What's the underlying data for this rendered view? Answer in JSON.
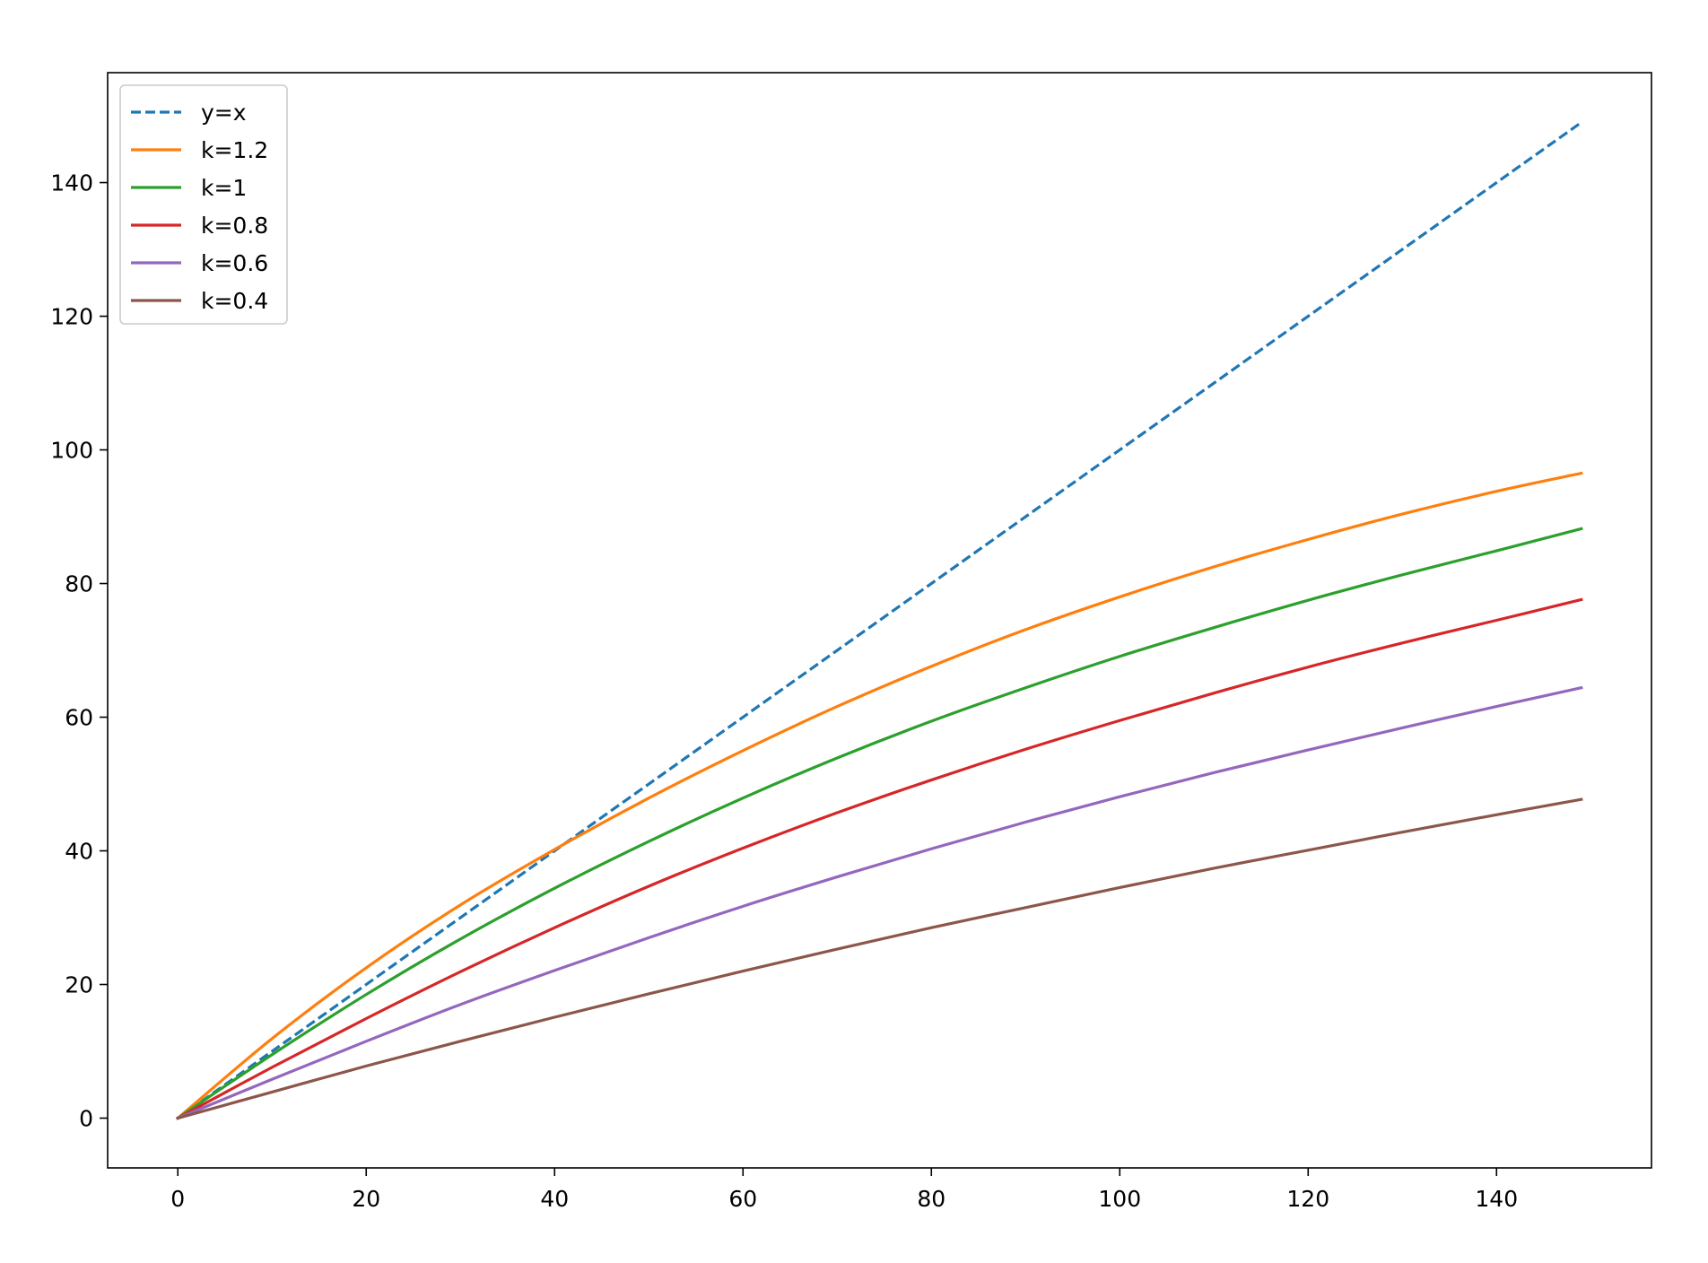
{
  "chart_data": {
    "type": "line",
    "title": "",
    "xlabel": "",
    "ylabel": "",
    "xlim": [
      -7.45,
      156.45
    ],
    "ylim": [
      -7.45,
      156.45
    ],
    "x_ticks": [
      0,
      20,
      40,
      60,
      80,
      100,
      120,
      140
    ],
    "y_ticks": [
      0,
      20,
      40,
      60,
      80,
      100,
      120,
      140
    ],
    "grid": false,
    "legend_position": "top-left",
    "x": [
      0,
      10,
      20,
      30,
      40,
      50,
      60,
      70,
      80,
      90,
      100,
      110,
      120,
      130,
      140,
      149
    ],
    "series": [
      {
        "name": "y=x",
        "color": "#1f77b4",
        "dash": "dashed",
        "values": [
          0,
          10,
          20,
          30,
          40,
          50,
          60,
          70,
          80,
          90,
          100,
          110,
          120,
          130,
          140,
          149
        ]
      },
      {
        "name": "k=1.2",
        "color": "#ff7f0e",
        "dash": "solid",
        "values": [
          0,
          11.9,
          22.5,
          31.9,
          40.2,
          47.9,
          55.0,
          61.6,
          67.6,
          73.1,
          78.0,
          82.5,
          86.6,
          90.4,
          93.8,
          96.5
        ]
      },
      {
        "name": "k=1",
        "color": "#2ca02c",
        "dash": "solid",
        "values": [
          0,
          9.5,
          18.5,
          26.8,
          34.4,
          41.4,
          47.9,
          53.9,
          59.4,
          64.4,
          69.1,
          73.4,
          77.5,
          81.3,
          84.9,
          88.2
        ]
      },
      {
        "name": "k=0.8",
        "color": "#d62728",
        "dash": "solid",
        "values": [
          0,
          7.6,
          14.9,
          21.9,
          28.5,
          34.7,
          40.4,
          45.7,
          50.6,
          55.2,
          59.5,
          63.6,
          67.5,
          71.1,
          74.5,
          77.6
        ]
      },
      {
        "name": "k=0.6",
        "color": "#9467bd",
        "dash": "solid",
        "values": [
          0,
          5.8,
          11.5,
          17.0,
          22.1,
          27.0,
          31.7,
          36.1,
          40.3,
          44.3,
          48.1,
          51.7,
          55.1,
          58.4,
          61.6,
          64.4
        ]
      },
      {
        "name": "k=0.4",
        "color": "#8c564b",
        "dash": "solid",
        "values": [
          0,
          3.9,
          7.8,
          11.5,
          15.1,
          18.6,
          22.0,
          25.3,
          28.5,
          31.5,
          34.5,
          37.4,
          40.1,
          42.8,
          45.4,
          47.7
        ]
      }
    ]
  }
}
